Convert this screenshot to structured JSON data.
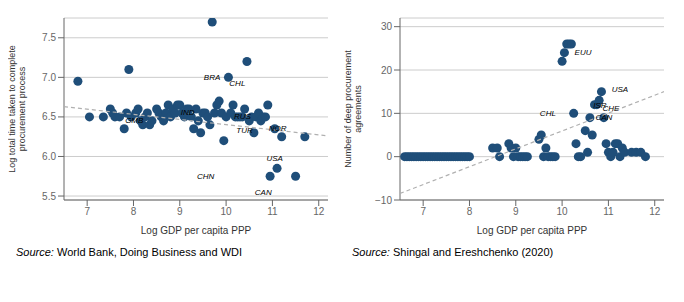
{
  "chart_data": [
    {
      "type": "scatter",
      "x_label": "Log GDP per capita PPP",
      "y_label": "Log total time taken to complete procurement process",
      "xlim": [
        6.5,
        12.2
      ],
      "ylim": [
        5.45,
        7.75
      ],
      "xticks": [
        7,
        8,
        9,
        10,
        11,
        12
      ],
      "yticks": [
        5.5,
        {
          "value": 6,
          "label": "6.0"
        },
        6.5,
        {
          "value": 7,
          "label": "7.0"
        },
        7.5
      ],
      "grid": "y",
      "series": [
        {
          "type": "scatter",
          "color": "#1f4e79",
          "x": [
            6.8,
            7.05,
            7.35,
            7.5,
            7.55,
            7.6,
            7.7,
            7.8,
            7.85,
            7.9,
            7.95,
            8.05,
            8.1,
            8.15,
            8.2,
            8.25,
            8.3,
            8.35,
            8.4,
            8.5,
            8.55,
            8.6,
            8.65,
            8.7,
            8.75,
            8.8,
            8.85,
            8.9,
            8.95,
            9.0,
            9.05,
            9.1,
            9.15,
            9.2,
            9.25,
            9.3,
            9.35,
            9.4,
            9.45,
            9.5,
            9.55,
            9.6,
            9.65,
            9.7,
            9.75,
            9.8,
            9.85,
            9.9,
            9.95,
            10.0,
            10.05,
            10.1,
            10.15,
            10.2,
            10.25,
            10.3,
            10.35,
            10.4,
            10.45,
            10.5,
            10.55,
            10.6,
            10.65,
            10.7,
            10.75,
            10.8,
            10.85,
            10.9,
            10.95,
            11.05,
            11.1,
            11.2,
            11.5,
            11.7
          ],
          "values": [
            6.95,
            6.5,
            6.5,
            6.6,
            6.55,
            6.5,
            6.5,
            6.35,
            6.55,
            7.1,
            6.5,
            6.55,
            6.6,
            6.45,
            6.4,
            6.5,
            6.55,
            6.4,
            6.45,
            6.6,
            6.55,
            6.5,
            6.45,
            6.55,
            6.65,
            6.5,
            6.6,
            6.55,
            6.65,
            6.65,
            6.55,
            6.5,
            6.6,
            6.6,
            6.5,
            6.35,
            6.6,
            6.45,
            6.3,
            6.55,
            6.55,
            6.5,
            6.4,
            7.7,
            6.55,
            6.65,
            6.7,
            6.55,
            6.2,
            6.5,
            7.0,
            6.55,
            6.65,
            6.5,
            6.5,
            6.5,
            6.5,
            6.6,
            7.2,
            6.45,
            6.5,
            6.3,
            6.5,
            6.55,
            6.45,
            6.5,
            6.5,
            6.65,
            5.75,
            6.35,
            5.85,
            6.25,
            5.75,
            6.25
          ]
        },
        {
          "type": "line",
          "color": "#b0b0b0",
          "line_style": "dashed",
          "x": [
            6.5,
            12.2
          ],
          "values": [
            6.63,
            6.26
          ]
        }
      ],
      "annotations": [
        {
          "text": "GMB",
          "x": 7.82,
          "y": 6.45
        },
        {
          "text": "IND",
          "x": 9.02,
          "y": 6.55
        },
        {
          "text": "BRA",
          "x": 9.52,
          "y": 7.0
        },
        {
          "text": "CHL",
          "x": 10.07,
          "y": 6.92
        },
        {
          "text": "CHN",
          "x": 9.37,
          "y": 5.75
        },
        {
          "text": "RUS",
          "x": 10.17,
          "y": 6.5
        },
        {
          "text": "TUR",
          "x": 10.22,
          "y": 6.33
        },
        {
          "text": "NOR",
          "x": 10.92,
          "y": 6.35
        },
        {
          "text": "USA",
          "x": 10.87,
          "y": 5.98
        },
        {
          "text": "CAN",
          "x": 10.62,
          "y": 5.55
        }
      ],
      "source": [
        "Source:",
        "World Bank, Doing Business and WDI"
      ]
    },
    {
      "type": "scatter",
      "x_label": "Log GDP per capita PPP",
      "y_label": "Number of deep procurement agreements",
      "xlim": [
        6.5,
        12.2
      ],
      "ylim": [
        -10,
        32
      ],
      "xticks": [
        7,
        8,
        9,
        10,
        11,
        12
      ],
      "yticks": [
        {
          "value": -10,
          "label": "−10"
        },
        0,
        10,
        20,
        30
      ],
      "grid": "y",
      "series": [
        {
          "type": "scatter",
          "color": "#1f4e79",
          "x": [
            6.6,
            6.65,
            6.7,
            6.75,
            6.8,
            6.85,
            6.9,
            6.95,
            7.0,
            7.05,
            7.1,
            7.15,
            7.2,
            7.25,
            7.3,
            7.35,
            7.4,
            7.45,
            7.5,
            7.55,
            7.6,
            7.65,
            7.7,
            7.75,
            7.8,
            7.85,
            7.9,
            7.95,
            8.0,
            8.5,
            8.6,
            8.65,
            8.85,
            8.9,
            8.95,
            9.0,
            9.05,
            9.1,
            9.15,
            9.2,
            9.25,
            9.5,
            9.55,
            9.6,
            9.65,
            9.7,
            9.75,
            9.8,
            9.85,
            10.0,
            10.05,
            10.1,
            10.15,
            10.2,
            10.25,
            10.3,
            10.35,
            10.4,
            10.5,
            10.55,
            10.6,
            10.65,
            10.7,
            10.75,
            10.8,
            10.85,
            10.9,
            10.95,
            11.0,
            11.05,
            11.1,
            11.15,
            11.2,
            11.25,
            11.3,
            11.35,
            11.5,
            11.6,
            11.7,
            11.8
          ],
          "values": [
            0,
            0,
            0,
            0,
            0,
            0,
            0,
            0,
            0,
            0,
            0,
            0,
            0,
            0,
            0,
            0,
            0,
            0,
            0,
            0,
            0,
            0,
            0,
            0,
            0,
            0,
            0,
            0,
            0,
            2,
            2,
            0,
            3,
            2,
            0,
            2,
            0,
            0,
            0,
            0,
            0,
            4,
            5,
            0,
            2,
            0,
            0,
            0,
            0,
            22,
            24,
            26,
            26,
            26,
            10,
            3,
            0,
            0,
            6,
            1,
            9,
            5,
            12,
            12,
            13,
            15,
            9,
            3,
            1,
            0,
            1,
            3,
            3,
            0,
            2,
            1,
            1,
            1,
            1,
            0
          ]
        },
        {
          "type": "line",
          "color": "#b0b0b0",
          "line_style": "dashed",
          "x": [
            6.5,
            12.2
          ],
          "values": [
            -8.5,
            15.0
          ]
        }
      ],
      "annotations": [
        {
          "text": "CHL",
          "x": 9.52,
          "y": 10.0
        },
        {
          "text": "EUU",
          "x": 10.27,
          "y": 24.0
        },
        {
          "text": "USA",
          "x": 11.07,
          "y": 15.5
        },
        {
          "text": "ISR",
          "x": 10.67,
          "y": 11.8
        },
        {
          "text": "CHE",
          "x": 10.87,
          "y": 11.2
        },
        {
          "text": "CAN",
          "x": 10.72,
          "y": 9.0
        }
      ],
      "source": [
        "Source:",
        "Shingal and Ereshchenko (2020)"
      ]
    }
  ]
}
